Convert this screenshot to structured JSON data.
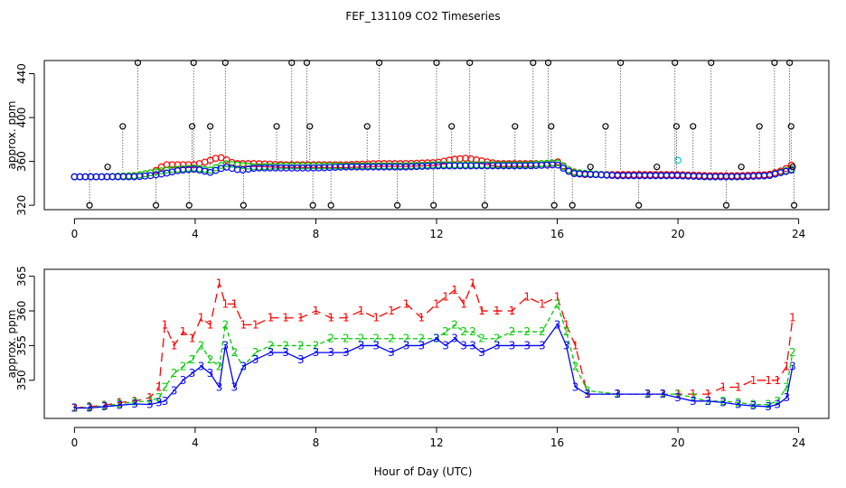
{
  "chart_data": [
    {
      "type": "scatter",
      "title": "FEF_131109  CO2 Timeseries",
      "xlabel": "",
      "ylabel": "approx. ppm",
      "xlim": [
        -1,
        25
      ],
      "ylim": [
        316,
        452
      ],
      "xticks": [
        0,
        4,
        8,
        12,
        16,
        20,
        24
      ],
      "xtick_labels": [
        "0",
        "4",
        "8",
        "12",
        "16",
        "20",
        "24"
      ],
      "yticks": [
        320,
        360,
        400,
        440
      ],
      "ytick_labels": [
        "320",
        "360",
        "400",
        "440"
      ],
      "series": [
        {
          "name": "1",
          "color": "#ff0000",
          "x": [
            0,
            1,
            2,
            2.6,
            3,
            3.5,
            4,
            4.4,
            4.8,
            5,
            5.3,
            6,
            7,
            8,
            9,
            10,
            11,
            12,
            12.6,
            13,
            14,
            15,
            15.8,
            16,
            16.4,
            16.8,
            18,
            19,
            20,
            21,
            22,
            23,
            23.5,
            23.9
          ],
          "y": [
            346,
            346,
            347,
            350,
            357,
            357,
            357,
            360,
            364,
            362,
            358,
            358,
            357,
            357,
            357,
            358,
            358,
            359,
            362,
            363,
            358,
            358,
            358,
            360,
            352,
            348,
            348,
            348,
            348,
            347,
            347,
            348,
            352,
            359
          ]
        },
        {
          "name": "2",
          "color": "#00cc00",
          "x": [
            0,
            1,
            2,
            3,
            3.5,
            4,
            4.5,
            5,
            6,
            7,
            8,
            9,
            10,
            11,
            12,
            13,
            14,
            15,
            16,
            16.5,
            18,
            20,
            21,
            22,
            23,
            23.9
          ],
          "y": [
            346,
            346,
            347,
            352,
            353,
            354,
            352,
            358,
            355,
            356,
            356,
            356,
            356,
            356,
            357,
            357,
            357,
            357,
            359,
            350,
            347,
            347,
            346,
            346,
            347,
            354
          ]
        },
        {
          "name": "3",
          "color": "#0000ff",
          "x": [
            0,
            1,
            2,
            2.5,
            3,
            3.5,
            4,
            4.5,
            5,
            5.5,
            6,
            7,
            8,
            9,
            10,
            11,
            12,
            13,
            14,
            15,
            16,
            16.5,
            18,
            20,
            21,
            22,
            23,
            23.9
          ],
          "y": [
            346,
            346,
            346,
            347,
            349,
            352,
            353,
            350,
            355,
            352,
            354,
            354,
            354,
            355,
            355,
            355,
            356,
            356,
            356,
            356,
            357,
            349,
            347,
            347,
            346,
            346,
            347,
            353
          ]
        }
      ],
      "outliers": {
        "color": "#000000",
        "x": [
          0.5,
          1.1,
          1.6,
          2.1,
          2.7,
          3.8,
          3.9,
          3.95,
          4.5,
          5.0,
          5.6,
          6.7,
          7.2,
          7.7,
          7.8,
          7.9,
          8.5,
          9.7,
          10.1,
          10.7,
          11.9,
          12.0,
          12.5,
          13.1,
          13.6,
          14.6,
          15.2,
          15.7,
          15.8,
          15.9,
          16.5,
          17.1,
          17.6,
          18.1,
          18.7,
          19.3,
          19.9,
          19.95,
          20.5,
          21.1,
          21.6,
          22.1,
          22.7,
          23.2,
          23.7,
          23.75,
          23.8,
          23.85
        ],
        "y": [
          320,
          355,
          392,
          450,
          320,
          320,
          392,
          450,
          392,
          450,
          320,
          392,
          450,
          450,
          392,
          320,
          320,
          392,
          450,
          320,
          320,
          450,
          392,
          450,
          320,
          392,
          450,
          450,
          392,
          320,
          320,
          355,
          392,
          450,
          320,
          355,
          450,
          392,
          392,
          450,
          320,
          355,
          392,
          450,
          450,
          392,
          355,
          320
        ]
      }
    },
    {
      "type": "line",
      "title": "",
      "xlabel": "Hour of Day (UTC)",
      "ylabel": "approx. ppm",
      "xlim": [
        -1,
        25
      ],
      "ylim": [
        344.5,
        366
      ],
      "xticks": [
        0,
        4,
        8,
        12,
        16,
        20,
        24
      ],
      "xtick_labels": [
        "0",
        "4",
        "8",
        "12",
        "16",
        "20",
        "24"
      ],
      "yticks": [
        350,
        355,
        360,
        365
      ],
      "ytick_labels": [
        "350",
        "355",
        "360",
        "365"
      ],
      "series": [
        {
          "name": "1",
          "color": "#ff0000",
          "x": [
            0,
            0.5,
            1,
            1.5,
            2,
            2.5,
            2.8,
            3,
            3.3,
            3.6,
            3.9,
            4.2,
            4.5,
            4.8,
            5,
            5.3,
            5.6,
            6,
            6.5,
            7,
            7.5,
            8,
            8.5,
            9,
            9.5,
            10,
            10.5,
            11,
            11.5,
            12,
            12.3,
            12.6,
            12.9,
            13.2,
            13.5,
            14,
            14.5,
            15,
            15.5,
            16,
            16.3,
            16.6,
            17,
            18,
            19,
            19.5,
            20,
            20.5,
            21,
            21.5,
            22,
            22.5,
            23,
            23.3,
            23.6,
            23.8
          ],
          "y": [
            346,
            346.2,
            346.4,
            346.8,
            347,
            347.5,
            349,
            358,
            355,
            357,
            356,
            359,
            358,
            364,
            361,
            361,
            358,
            358,
            359,
            359,
            359,
            360,
            359,
            359,
            360,
            359,
            360,
            361,
            359,
            361,
            362,
            363,
            361,
            364,
            360,
            360,
            360,
            362,
            361,
            362,
            358,
            355,
            348,
            348,
            348,
            348,
            348,
            348,
            348,
            349,
            349,
            350,
            350,
            350,
            352,
            359
          ]
        },
        {
          "name": "2",
          "color": "#00cc00",
          "x": [
            0,
            0.5,
            1,
            1.5,
            2,
            2.5,
            2.8,
            3,
            3.3,
            3.6,
            3.9,
            4.2,
            4.5,
            4.8,
            5,
            5.3,
            5.6,
            6,
            6.5,
            7,
            7.5,
            8,
            8.5,
            9,
            9.5,
            10,
            10.5,
            11,
            11.5,
            12,
            12.3,
            12.6,
            12.9,
            13.2,
            13.5,
            14,
            14.5,
            15,
            15.5,
            16,
            16.3,
            16.6,
            17,
            18,
            19,
            19.5,
            20,
            20.5,
            21,
            21.5,
            22,
            22.5,
            23,
            23.3,
            23.6,
            23.8
          ],
          "y": [
            346,
            346.1,
            346.3,
            346.6,
            346.9,
            347,
            347.5,
            349,
            351,
            352,
            353,
            355,
            353,
            352,
            358,
            354,
            352,
            354,
            355,
            355,
            355,
            355,
            356,
            356,
            356,
            356,
            356,
            356,
            356,
            356,
            357,
            358,
            357,
            357,
            356,
            356,
            357,
            357,
            357,
            361,
            357,
            352,
            348.5,
            348,
            348,
            348,
            348,
            347.5,
            347,
            347,
            346.8,
            346.5,
            346.5,
            347,
            349,
            354
          ]
        },
        {
          "name": "3",
          "color": "#0000ff",
          "x": [
            0,
            0.5,
            1,
            1.5,
            2,
            2.5,
            2.8,
            3,
            3.3,
            3.6,
            3.9,
            4.2,
            4.5,
            4.8,
            5,
            5.3,
            5.6,
            6,
            6.5,
            7,
            7.5,
            8,
            8.5,
            9,
            9.5,
            10,
            10.5,
            11,
            11.5,
            12,
            12.3,
            12.6,
            12.9,
            13.2,
            13.5,
            14,
            14.5,
            15,
            15.5,
            16,
            16.3,
            16.6,
            17,
            18,
            19,
            19.5,
            20,
            20.5,
            21,
            21.5,
            22,
            22.5,
            23,
            23.3,
            23.6,
            23.8
          ],
          "y": [
            346,
            346,
            346.2,
            346.4,
            346.6,
            346.5,
            346.8,
            347,
            348.5,
            350,
            351,
            352,
            351,
            349,
            355,
            349,
            352,
            353,
            354,
            354,
            353,
            354,
            354,
            354,
            355,
            355,
            354,
            355,
            355,
            356,
            355,
            356,
            355,
            355,
            354,
            355,
            355,
            355,
            355,
            358,
            355,
            349,
            348,
            348,
            348,
            348,
            347.5,
            347,
            347,
            346.8,
            346.5,
            346.3,
            346.2,
            346.5,
            347.5,
            352
          ]
        }
      ]
    }
  ]
}
